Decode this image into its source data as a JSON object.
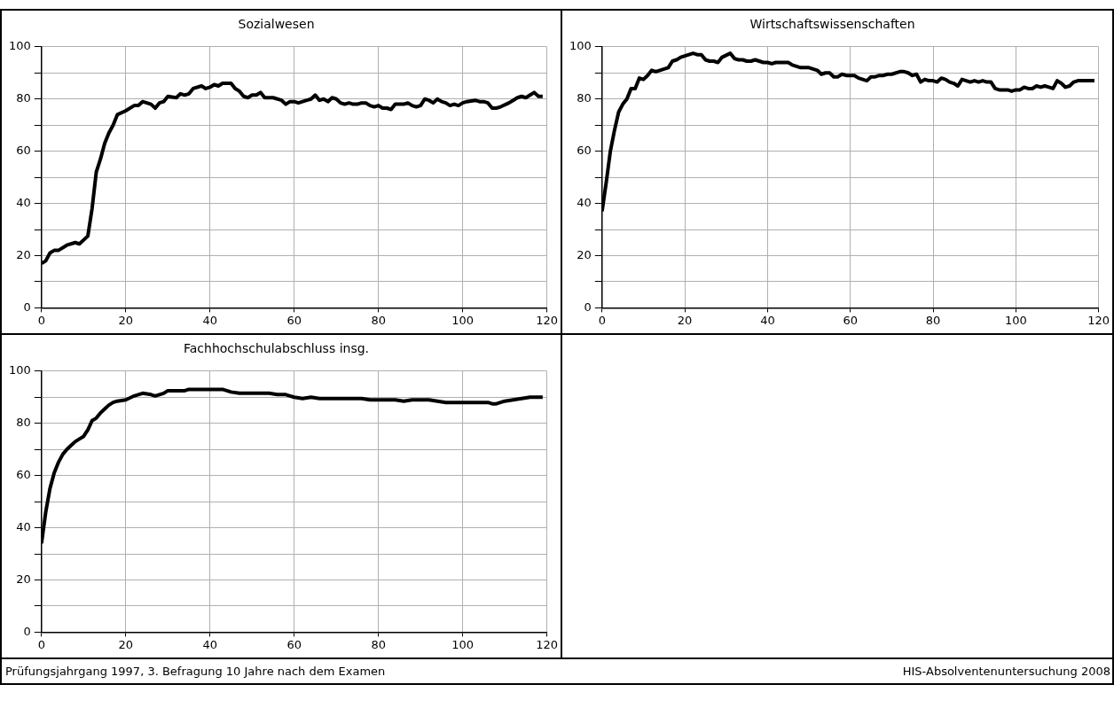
{
  "chart_data": [
    {
      "type": "line",
      "title": "Sozialwesen",
      "color": "#000000",
      "xlim": [
        0,
        120
      ],
      "xticks": [
        0,
        20,
        40,
        60,
        80,
        100,
        120
      ],
      "ylim": [
        0,
        100
      ],
      "yticks": [
        0,
        {
          "value": 10,
          "label": null
        },
        20,
        {
          "value": 30,
          "label": null
        },
        40,
        {
          "value": 50,
          "label": null
        },
        60,
        {
          "value": 70,
          "label": null
        },
        80,
        {
          "value": 90,
          "label": null
        },
        100
      ],
      "grid": true,
      "x": [
        0,
        1,
        2,
        3,
        4,
        6,
        8,
        9,
        11,
        12,
        13,
        14,
        15,
        16,
        17,
        18,
        20,
        22,
        23,
        24,
        26,
        27,
        28,
        29,
        30,
        32,
        33,
        34,
        35,
        36,
        38,
        39,
        40,
        41,
        42,
        43,
        45,
        46,
        47,
        48,
        49,
        50,
        51,
        52,
        53,
        55,
        57,
        58,
        59,
        60,
        61,
        63,
        64,
        65,
        66,
        67,
        68,
        69,
        70,
        71,
        72,
        73,
        74,
        75,
        76,
        77,
        78,
        79,
        80,
        81,
        82,
        83,
        84,
        86,
        87,
        88,
        89,
        90,
        91,
        92,
        93,
        94,
        95,
        96,
        97,
        98,
        99,
        100,
        101,
        103,
        104,
        105,
        106,
        107,
        108,
        109,
        111,
        112,
        113,
        114,
        115,
        116,
        117,
        118,
        119
      ],
      "values": [
        17,
        18,
        21,
        22,
        22,
        24,
        25,
        24.5,
        27.5,
        38,
        52,
        57,
        63,
        67,
        70,
        74,
        75.5,
        77.5,
        77.5,
        79,
        78,
        76.5,
        78.5,
        79,
        81,
        80.5,
        82,
        81.5,
        82,
        84,
        85,
        84,
        84.5,
        85.5,
        85,
        86,
        86,
        84,
        83,
        81,
        80.5,
        81.5,
        81.5,
        82.5,
        80.5,
        80.5,
        79.5,
        78,
        79,
        79,
        78.5,
        79.5,
        80,
        81.5,
        79.5,
        80,
        79,
        80.5,
        80,
        78.5,
        78,
        78.5,
        78,
        78,
        78.5,
        78.5,
        77.5,
        77,
        77.5,
        76.5,
        76.5,
        76,
        78,
        78,
        78.5,
        77.5,
        77,
        77.5,
        80,
        79.5,
        78.5,
        80,
        79,
        78.5,
        77.5,
        78,
        77.5,
        78.5,
        79,
        79.5,
        79,
        79,
        78.5,
        76.5,
        76.5,
        77,
        78.5,
        79.5,
        80.5,
        81,
        80.5,
        81.5,
        82.5,
        81,
        81
      ],
      "annotations": [
        "Prüfungsjahrgang 1997, 3. Befragung 10 Jahre nach dem Examen",
        "HIS-Absolventenuntersuchung 2008"
      ]
    },
    {
      "type": "line",
      "title": "Wirtschaftswissenschaften",
      "color": "#000000",
      "xlim": [
        0,
        120
      ],
      "xticks": [
        0,
        20,
        40,
        60,
        80,
        100,
        120
      ],
      "ylim": [
        0,
        100
      ],
      "yticks": [
        0,
        {
          "value": 10,
          "label": null
        },
        20,
        {
          "value": 30,
          "label": null
        },
        40,
        {
          "value": 50,
          "label": null
        },
        60,
        {
          "value": 70,
          "label": null
        },
        80,
        {
          "value": 90,
          "label": null
        },
        100
      ],
      "grid": true,
      "x": [
        0,
        1,
        2,
        3,
        4,
        5,
        6,
        7,
        8,
        9,
        10,
        11,
        12,
        13,
        14,
        16,
        17,
        18,
        19,
        20,
        22,
        23,
        24,
        25,
        26,
        27,
        28,
        29,
        31,
        32,
        33,
        34,
        35,
        36,
        37,
        38,
        39,
        40,
        41,
        42,
        44,
        45,
        46,
        47,
        48,
        50,
        52,
        53,
        54,
        55,
        56,
        57,
        58,
        59,
        60,
        61,
        62,
        63,
        64,
        65,
        66,
        67,
        68,
        69,
        70,
        72,
        73,
        74,
        75,
        76,
        77,
        78,
        79,
        80,
        81,
        82,
        83,
        84,
        85,
        86,
        87,
        88,
        89,
        90,
        91,
        92,
        93,
        94,
        95,
        96,
        98,
        99,
        100,
        101,
        102,
        103,
        104,
        105,
        106,
        107,
        108,
        109,
        110,
        111,
        112,
        113,
        114,
        115,
        117,
        119
      ],
      "values": [
        37,
        48,
        60,
        68,
        75,
        78,
        80,
        84,
        84,
        88,
        87.5,
        89,
        91,
        90.5,
        91,
        92,
        94.5,
        95,
        96,
        96.5,
        97.5,
        97,
        97,
        95,
        94.5,
        94.5,
        94,
        96,
        97.5,
        95.5,
        95,
        95,
        94.5,
        94.5,
        95,
        94.5,
        94,
        94,
        93.5,
        94,
        94,
        94,
        93,
        92.5,
        92,
        92,
        91,
        89.5,
        90,
        90,
        88.5,
        88.5,
        89.5,
        89,
        89,
        89,
        88,
        87.5,
        87,
        88.5,
        88.5,
        89,
        89,
        89.5,
        89.5,
        90.5,
        90.5,
        90,
        89,
        89.5,
        86.5,
        87.5,
        87,
        87,
        86.5,
        88,
        87.5,
        86.5,
        86,
        85,
        87.5,
        87,
        86.5,
        87,
        86.5,
        87,
        86.5,
        86.5,
        84,
        83.5,
        83.5,
        83,
        83.5,
        83.5,
        84.5,
        84,
        84,
        85,
        84.5,
        85,
        84.5,
        84,
        87,
        86,
        84.5,
        85,
        86.5,
        87,
        87,
        87
      ]
    },
    {
      "type": "line",
      "title": "Fachhochschulabschluss insg.",
      "color": "#000000",
      "xlim": [
        0,
        120
      ],
      "xticks": [
        0,
        20,
        40,
        60,
        80,
        100,
        120
      ],
      "ylim": [
        0,
        100
      ],
      "yticks": [
        0,
        {
          "value": 10,
          "label": null
        },
        20,
        {
          "value": 30,
          "label": null
        },
        40,
        {
          "value": 50,
          "label": null
        },
        60,
        {
          "value": 70,
          "label": null
        },
        80,
        {
          "value": 90,
          "label": null
        },
        100
      ],
      "grid": true,
      "x": [
        0,
        1,
        2,
        3,
        4,
        5,
        6,
        7,
        8,
        9,
        10,
        11,
        12,
        13,
        14,
        15,
        16,
        17,
        18,
        20,
        22,
        23,
        24,
        26,
        27,
        28,
        29,
        30,
        32,
        34,
        35,
        36,
        38,
        40,
        42,
        43,
        44,
        45,
        47,
        50,
        52,
        54,
        56,
        58,
        59,
        60,
        62,
        64,
        66,
        68,
        70,
        72,
        74,
        76,
        78,
        80,
        82,
        84,
        86,
        88,
        90,
        92,
        94,
        96,
        98,
        100,
        102,
        104,
        106,
        107,
        108,
        110,
        112,
        114,
        116,
        118,
        119
      ],
      "values": [
        34,
        46,
        55,
        61,
        65,
        68,
        70,
        71.5,
        73,
        74,
        75,
        77.5,
        81,
        82,
        84,
        85.5,
        87,
        88,
        88.5,
        89,
        90.5,
        91,
        91.5,
        91,
        90.5,
        91,
        91.5,
        92.5,
        92.5,
        92.5,
        93,
        93,
        93,
        93,
        93,
        93,
        92.5,
        92,
        91.5,
        91.5,
        91.5,
        91.5,
        91,
        91,
        90.5,
        90,
        89.5,
        90,
        89.5,
        89.5,
        89.5,
        89.5,
        89.5,
        89.5,
        89,
        89,
        89,
        89,
        88.5,
        89,
        89,
        89,
        88.5,
        88,
        88,
        88,
        88,
        88,
        88,
        87.5,
        87.5,
        88.5,
        89,
        89.5,
        90,
        90,
        90
      ]
    }
  ]
}
